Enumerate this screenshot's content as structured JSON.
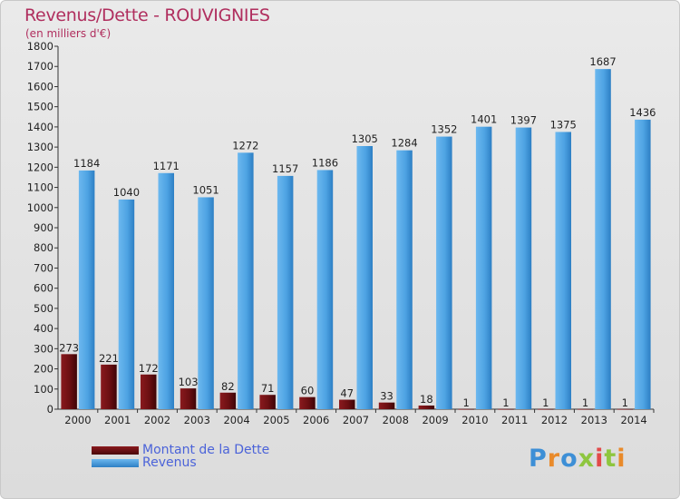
{
  "header": {
    "title": "Revenus/Dette - ROUVIGNIES",
    "subtitle": "(en milliers d'€)"
  },
  "legend": [
    {
      "label": "Montant de la Dette",
      "color": "#6b0f12"
    },
    {
      "label": "Revenus",
      "color": "#4ea3e3"
    }
  ],
  "logo": {
    "text": "Proxiti"
  },
  "chart_data": {
    "type": "bar",
    "categories": [
      "2000",
      "2001",
      "2002",
      "2003",
      "2004",
      "2005",
      "2006",
      "2007",
      "2008",
      "2009",
      "2010",
      "2011",
      "2012",
      "2013",
      "2014"
    ],
    "series": [
      {
        "name": "Montant de la Dette",
        "color": "#6b0f12",
        "values": [
          273,
          221,
          172,
          103,
          82,
          71,
          60,
          47,
          33,
          18,
          1,
          1,
          1,
          1,
          1
        ]
      },
      {
        "name": "Revenus",
        "color": "#4ea3e3",
        "values": [
          1184,
          1040,
          1171,
          1051,
          1272,
          1157,
          1186,
          1305,
          1284,
          1352,
          1401,
          1397,
          1375,
          1687,
          1436
        ]
      }
    ],
    "y_ticks": [
      0,
      100,
      200,
      300,
      400,
      500,
      600,
      700,
      800,
      900,
      1000,
      1100,
      1200,
      1300,
      1400,
      1500,
      1600,
      1700,
      1800
    ],
    "ylim": [
      0,
      1800
    ],
    "grid": false
  }
}
